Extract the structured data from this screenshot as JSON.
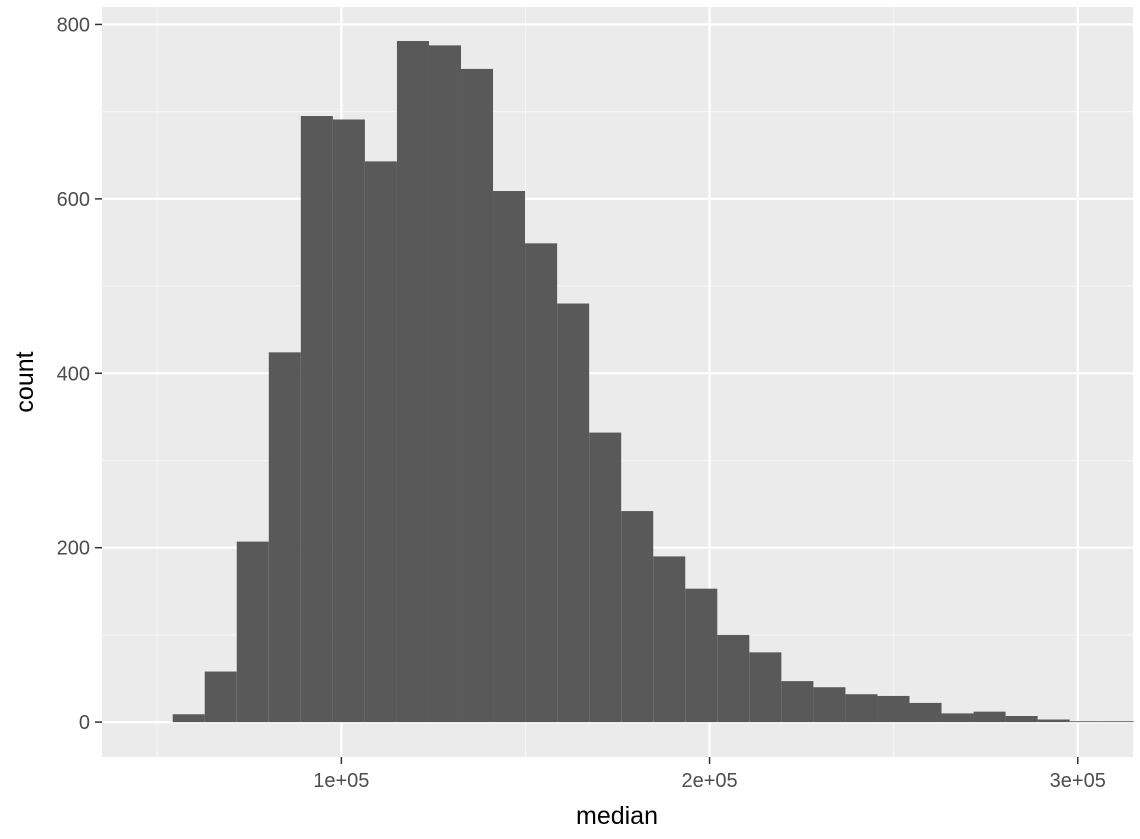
{
  "chart_data": {
    "type": "bar",
    "subtype": "histogram",
    "title": "",
    "xlabel": "median",
    "ylabel": "count",
    "xlim": [
      35000,
      315000
    ],
    "ylim": [
      -40,
      820
    ],
    "bin_width": 8700,
    "bins": [
      {
        "x0": 54200,
        "x1": 62900,
        "count": 9
      },
      {
        "x0": 62900,
        "x1": 71600,
        "count": 58
      },
      {
        "x0": 71600,
        "x1": 80300,
        "count": 207
      },
      {
        "x0": 80300,
        "x1": 89000,
        "count": 424
      },
      {
        "x0": 89000,
        "x1": 97700,
        "count": 695
      },
      {
        "x0": 97700,
        "x1": 106400,
        "count": 691
      },
      {
        "x0": 106400,
        "x1": 115100,
        "count": 643
      },
      {
        "x0": 115100,
        "x1": 123800,
        "count": 781
      },
      {
        "x0": 123800,
        "x1": 132500,
        "count": 776
      },
      {
        "x0": 132500,
        "x1": 141200,
        "count": 749
      },
      {
        "x0": 141200,
        "x1": 149900,
        "count": 609
      },
      {
        "x0": 149900,
        "x1": 158600,
        "count": 549
      },
      {
        "x0": 158600,
        "x1": 167300,
        "count": 480
      },
      {
        "x0": 167300,
        "x1": 176000,
        "count": 332
      },
      {
        "x0": 176000,
        "x1": 184700,
        "count": 242
      },
      {
        "x0": 184700,
        "x1": 193400,
        "count": 190
      },
      {
        "x0": 193400,
        "x1": 202100,
        "count": 153
      },
      {
        "x0": 202100,
        "x1": 210800,
        "count": 100
      },
      {
        "x0": 210800,
        "x1": 219500,
        "count": 80
      },
      {
        "x0": 219500,
        "x1": 228200,
        "count": 47
      },
      {
        "x0": 228200,
        "x1": 236900,
        "count": 40
      },
      {
        "x0": 236900,
        "x1": 245600,
        "count": 32
      },
      {
        "x0": 245600,
        "x1": 254300,
        "count": 30
      },
      {
        "x0": 254300,
        "x1": 263000,
        "count": 22
      },
      {
        "x0": 263000,
        "x1": 271700,
        "count": 10
      },
      {
        "x0": 271700,
        "x1": 280400,
        "count": 12
      },
      {
        "x0": 280400,
        "x1": 289100,
        "count": 7
      },
      {
        "x0": 289100,
        "x1": 297800,
        "count": 3
      },
      {
        "x0": 297800,
        "x1": 306500,
        "count": 1
      },
      {
        "x0": 306500,
        "x1": 315200,
        "count": 1
      }
    ],
    "x_ticks": [
      {
        "value": 100000,
        "label": "1e+05"
      },
      {
        "value": 200000,
        "label": "2e+05"
      },
      {
        "value": 300000,
        "label": "3e+05"
      }
    ],
    "x_minor_breaks": [
      50000,
      150000,
      250000
    ],
    "y_ticks": [
      {
        "value": 0,
        "label": "0"
      },
      {
        "value": 200,
        "label": "200"
      },
      {
        "value": 400,
        "label": "400"
      },
      {
        "value": 600,
        "label": "600"
      },
      {
        "value": 800,
        "label": "800"
      }
    ],
    "y_minor_breaks": [
      100,
      300,
      500,
      700
    ],
    "grid": true,
    "legend": "none",
    "colors": {
      "bar_fill": "#595959",
      "panel_background": "#ebebeb",
      "grid_major": "#ffffff",
      "grid_minor": "#f5f5f5",
      "tick_text": "#4d4d4d",
      "tick_mark": "#333333",
      "axis_title": "#000000"
    }
  }
}
